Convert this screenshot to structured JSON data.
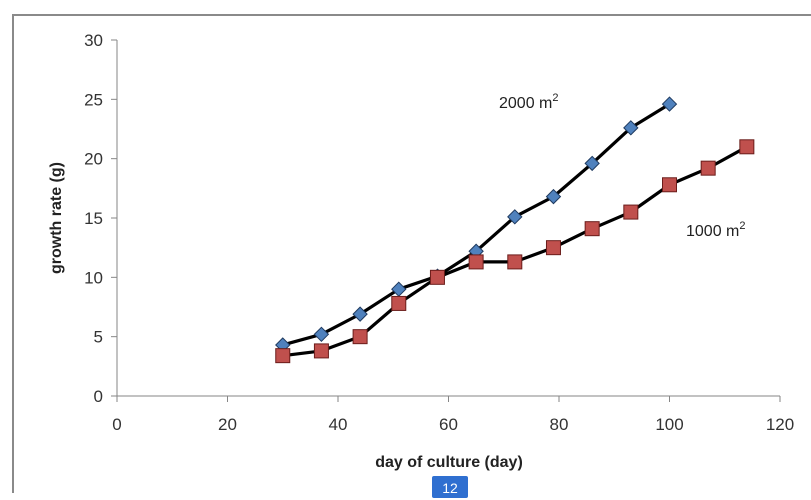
{
  "chart_data": {
    "type": "line",
    "title": "",
    "xlabel": "day of culture (day)",
    "ylabel": "growth rate (g)",
    "xlim": [
      0,
      120
    ],
    "ylim": [
      0,
      30
    ],
    "xticks": [
      0,
      20,
      40,
      60,
      80,
      100,
      120
    ],
    "yticks": [
      0,
      5,
      10,
      15,
      20,
      25,
      30
    ],
    "grid": false,
    "series": [
      {
        "name": "2000 m²",
        "label_base": "2000 m",
        "label_sup": "2",
        "marker": "diamond",
        "color": "#4f81bd",
        "x": [
          30,
          37,
          44,
          51,
          58,
          65,
          72,
          79,
          86,
          93,
          100
        ],
        "y": [
          4.3,
          5.2,
          6.9,
          9.0,
          10.1,
          12.2,
          15.1,
          16.8,
          19.6,
          22.6,
          24.6
        ]
      },
      {
        "name": "1000 m²",
        "label_base": "1000 m",
        "label_sup": "2",
        "marker": "square",
        "color": "#c0504d",
        "x": [
          30,
          37,
          44,
          51,
          58,
          65,
          72,
          79,
          86,
          93,
          100,
          107,
          114
        ],
        "y": [
          3.4,
          3.8,
          5.0,
          7.8,
          10.0,
          11.3,
          11.3,
          12.5,
          14.1,
          15.5,
          17.8,
          19.2,
          21.0
        ]
      }
    ]
  },
  "page_number": "12"
}
